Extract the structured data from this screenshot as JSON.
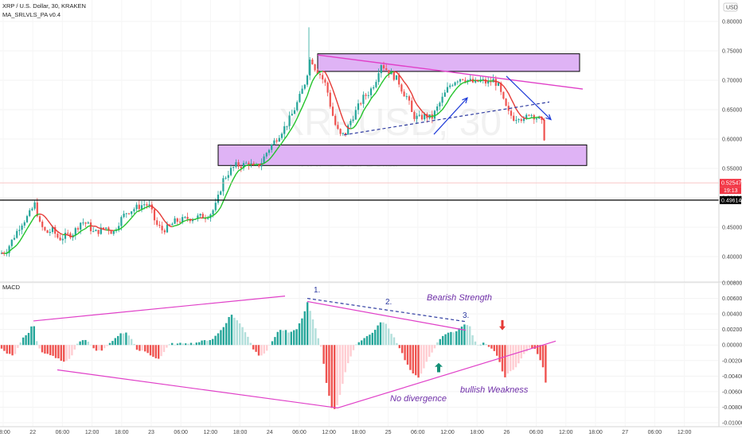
{
  "header": {
    "title": "XRP / U.S. Dollar, 30, KRAKEN",
    "indicator": "MA_SRLVLS_PA v0.4",
    "currency_button": "USD",
    "watermark_symbol": "XRPUSD, 30",
    "watermark_name": "XRP / U.S. Dollar"
  },
  "macd_panel": {
    "title": "MACD"
  },
  "chart_data": [
    {
      "type": "candlestick",
      "title": "XRP / U.S. Dollar, 30, KRAKEN",
      "ylim": [
        0.37,
        0.82
      ],
      "y_ticks": [
        "0.80000",
        "0.75000",
        "0.70000",
        "0.65000",
        "0.60000",
        "0.55000",
        "0.50000",
        "0.45000",
        "0.40000"
      ],
      "x_ticks": [
        "18:00",
        "22",
        "06:00",
        "12:00",
        "18:00",
        "23",
        "06:00",
        "12:00",
        "18:00",
        "24",
        "06:00",
        "12:00",
        "18:00",
        "25",
        "06:00",
        "12:00",
        "18:00",
        "26",
        "06:00",
        "12:00",
        "18:00",
        "27",
        "06:00",
        "12:00"
      ],
      "last_price": "0.52547",
      "countdown": "19:13",
      "horizontal_level": "0.49614",
      "price_path": [
        [
          0,
          0.405
        ],
        [
          8,
          0.41
        ],
        [
          16,
          0.43
        ],
        [
          26,
          0.455
        ],
        [
          36,
          0.47
        ],
        [
          44,
          0.49
        ],
        [
          50,
          0.455
        ],
        [
          58,
          0.44
        ],
        [
          66,
          0.445
        ],
        [
          74,
          0.43
        ],
        [
          82,
          0.435
        ],
        [
          92,
          0.44
        ],
        [
          102,
          0.46
        ],
        [
          110,
          0.455
        ],
        [
          118,
          0.44
        ],
        [
          126,
          0.445
        ],
        [
          134,
          0.45
        ],
        [
          142,
          0.44
        ],
        [
          150,
          0.46
        ],
        [
          158,
          0.475
        ],
        [
          166,
          0.48
        ],
        [
          174,
          0.485
        ],
        [
          182,
          0.49
        ],
        [
          188,
          0.485
        ],
        [
          196,
          0.455
        ],
        [
          204,
          0.445
        ],
        [
          212,
          0.45
        ],
        [
          220,
          0.46
        ],
        [
          228,
          0.462
        ],
        [
          236,
          0.465
        ],
        [
          244,
          0.466
        ],
        [
          252,
          0.468
        ],
        [
          260,
          0.47
        ],
        [
          266,
          0.475
        ],
        [
          272,
          0.49
        ],
        [
          280,
          0.53
        ],
        [
          288,
          0.545
        ],
        [
          296,
          0.555
        ],
        [
          304,
          0.555
        ],
        [
          312,
          0.56
        ],
        [
          320,
          0.55
        ],
        [
          328,
          0.56
        ],
        [
          336,
          0.58
        ],
        [
          344,
          0.595
        ],
        [
          352,
          0.61
        ],
        [
          360,
          0.625
        ],
        [
          368,
          0.645
        ],
        [
          376,
          0.67
        ],
        [
          384,
          0.7
        ],
        [
          390,
          0.74
        ],
        [
          396,
          0.72
        ],
        [
          402,
          0.71
        ],
        [
          410,
          0.69
        ],
        [
          416,
          0.65
        ],
        [
          422,
          0.62
        ],
        [
          428,
          0.605
        ],
        [
          434,
          0.61
        ],
        [
          440,
          0.63
        ],
        [
          448,
          0.65
        ],
        [
          456,
          0.67
        ],
        [
          464,
          0.68
        ],
        [
          472,
          0.7
        ],
        [
          478,
          0.73
        ],
        [
          484,
          0.72
        ],
        [
          492,
          0.71
        ],
        [
          500,
          0.7
        ],
        [
          506,
          0.68
        ],
        [
          512,
          0.67
        ],
        [
          518,
          0.64
        ],
        [
          526,
          0.635
        ],
        [
          534,
          0.64
        ],
        [
          542,
          0.635
        ],
        [
          548,
          0.65
        ],
        [
          556,
          0.67
        ],
        [
          564,
          0.69
        ],
        [
          572,
          0.7
        ],
        [
          580,
          0.705
        ],
        [
          588,
          0.7
        ],
        [
          596,
          0.695
        ],
        [
          604,
          0.7
        ],
        [
          612,
          0.695
        ],
        [
          620,
          0.7
        ],
        [
          626,
          0.69
        ],
        [
          632,
          0.665
        ],
        [
          638,
          0.645
        ],
        [
          646,
          0.635
        ],
        [
          652,
          0.64
        ],
        [
          658,
          0.63
        ],
        [
          664,
          0.645
        ],
        [
          670,
          0.64
        ],
        [
          676,
          0.635
        ],
        [
          680,
          0.63
        ],
        [
          684,
          0.6
        ],
        [
          686,
          0.525
        ]
      ],
      "levels": {
        "resistance_zone": [
          0.715,
          0.745
        ],
        "support_zone": [
          0.555,
          0.59
        ]
      }
    },
    {
      "type": "bar",
      "title": "MACD",
      "ylim": [
        -0.0101,
        0.0083
      ],
      "y_ticks": [
        "0.00800",
        "0.00600",
        "0.00400",
        "0.00200",
        "0.00000",
        "-0.00200",
        "-0.00400",
        "-0.00600",
        "-0.00800",
        "-0.01000"
      ],
      "shape_knots": [
        [
          0,
          -0.0003
        ],
        [
          10,
          -0.0012
        ],
        [
          18,
          -0.0013
        ],
        [
          28,
          0.0008
        ],
        [
          36,
          0.0015
        ],
        [
          42,
          0.003
        ],
        [
          46,
          0.0005
        ],
        [
          52,
          -0.001
        ],
        [
          62,
          -0.0013
        ],
        [
          72,
          -0.0017
        ],
        [
          82,
          -0.0022
        ],
        [
          90,
          -0.0015
        ],
        [
          98,
          0.0004
        ],
        [
          106,
          0.0008
        ],
        [
          112,
          0.0003
        ],
        [
          120,
          -0.0008
        ],
        [
          130,
          -0.0006
        ],
        [
          140,
          0.0004
        ],
        [
          150,
          0.0014
        ],
        [
          158,
          0.0016
        ],
        [
          165,
          0.0009
        ],
        [
          172,
          -0.0007
        ],
        [
          182,
          -0.0008
        ],
        [
          192,
          -0.0015
        ],
        [
          200,
          -0.0018
        ],
        [
          206,
          -0.0009
        ],
        [
          214,
          0.0002
        ],
        [
          222,
          0.0001
        ],
        [
          232,
          0.0003
        ],
        [
          242,
          0.0002
        ],
        [
          250,
          0.0004
        ],
        [
          258,
          0.0006
        ],
        [
          266,
          0.0007
        ],
        [
          274,
          0.0015
        ],
        [
          282,
          0.0025
        ],
        [
          290,
          0.004
        ],
        [
          296,
          0.0034
        ],
        [
          304,
          0.0024
        ],
        [
          312,
          0.001
        ],
        [
          318,
          -0.0005
        ],
        [
          326,
          -0.0014
        ],
        [
          334,
          -0.0009
        ],
        [
          342,
          0.0005
        ],
        [
          350,
          0.0019
        ],
        [
          358,
          0.0019
        ],
        [
          364,
          0.0015
        ],
        [
          372,
          0.002
        ],
        [
          380,
          0.0035
        ],
        [
          386,
          0.0055
        ],
        [
          392,
          0.0036
        ],
        [
          398,
          0.0015
        ],
        [
          404,
          -0.0005
        ],
        [
          410,
          -0.0048
        ],
        [
          416,
          -0.008
        ],
        [
          422,
          -0.0083
        ],
        [
          428,
          -0.006
        ],
        [
          434,
          -0.0035
        ],
        [
          440,
          -0.0015
        ],
        [
          448,
          0.0002
        ],
        [
          456,
          0.0008
        ],
        [
          464,
          0.0013
        ],
        [
          472,
          0.002
        ],
        [
          478,
          0.003
        ],
        [
          484,
          0.0028
        ],
        [
          490,
          0.0018
        ],
        [
          496,
          0.0008
        ],
        [
          504,
          -0.0008
        ],
        [
          510,
          -0.0022
        ],
        [
          518,
          -0.0037
        ],
        [
          526,
          -0.0042
        ],
        [
          532,
          -0.003
        ],
        [
          538,
          -0.0018
        ],
        [
          544,
          -0.0008
        ],
        [
          550,
          0.0004
        ],
        [
          556,
          0.0012
        ],
        [
          562,
          0.0016
        ],
        [
          570,
          0.0016
        ],
        [
          578,
          0.0022
        ],
        [
          584,
          0.0028
        ],
        [
          590,
          0.0024
        ],
        [
          596,
          0.0005
        ],
        [
          602,
          -0.0002
        ],
        [
          608,
          0.0003
        ],
        [
          614,
          -0.0003
        ],
        [
          622,
          -0.0008
        ],
        [
          628,
          -0.0024
        ],
        [
          634,
          -0.0042
        ],
        [
          640,
          -0.0035
        ],
        [
          646,
          -0.003
        ],
        [
          652,
          -0.0023
        ],
        [
          658,
          -0.0012
        ],
        [
          664,
          -0.0005
        ],
        [
          670,
          -0.0003
        ],
        [
          676,
          -0.0012
        ],
        [
          682,
          -0.0028
        ],
        [
          686,
          -0.0052
        ]
      ]
    }
  ],
  "annotations": {
    "label_1": "1.",
    "label_2": "2.",
    "label_3": "3.",
    "bearish_strength": "Bearish Strength",
    "no_divergence": "No divergence",
    "bullish_weakness": "bullish Weakness"
  },
  "colors": {
    "bull": "#26a69a",
    "bear": "#ef5350",
    "zone_fill": "#dfb3f5",
    "trendline": "#e040c8",
    "dashed": "#2d3aa0",
    "ma_up": "#22c32a",
    "ma_down": "#e53935",
    "price_label": "#f23645"
  }
}
